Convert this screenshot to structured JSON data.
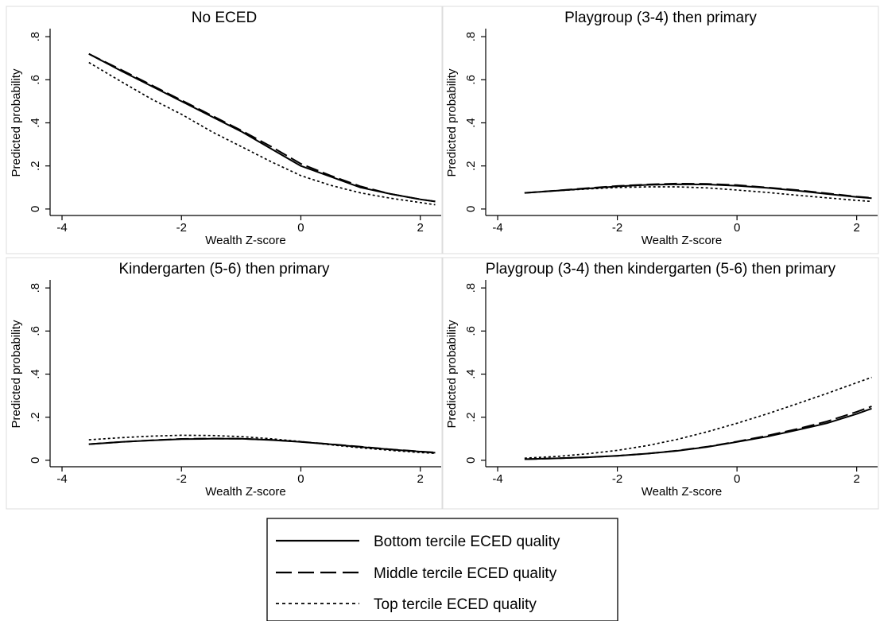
{
  "chart_data": {
    "type": "line",
    "xlabel": "Wealth Z-score",
    "ylabel": "Predicted probability",
    "xlim": [
      -4.2,
      2.35
    ],
    "ylim": [
      -0.03,
      0.83
    ],
    "xticks": [
      -4,
      -2,
      0,
      2
    ],
    "xtick_labels": [
      "-4",
      "-2",
      "0",
      "2"
    ],
    "yticks": [
      0,
      0.2,
      0.4,
      0.6,
      0.8
    ],
    "ytick_labels": [
      "0",
      ".2",
      ".4",
      ".6",
      ".8"
    ],
    "grid": false,
    "legend": {
      "placement": "bottom-center",
      "entries": [
        {
          "label": "Bottom tercile ECED quality",
          "style": "solid"
        },
        {
          "label": "Middle tercile ECED quality",
          "style": "long-dash"
        },
        {
          "label": "Top tercile ECED quality",
          "style": "dotted"
        }
      ]
    },
    "panels": [
      {
        "title": "No ECED",
        "x": [
          -3.55,
          -3,
          -2.5,
          -2,
          -1.5,
          -1,
          -0.5,
          0,
          0.5,
          1,
          1.5,
          2,
          2.25
        ],
        "series": [
          {
            "name": "Bottom tercile ECED quality",
            "style": "solid",
            "values": [
              0.72,
              0.64,
              0.57,
              0.5,
              0.43,
              0.36,
              0.28,
              0.2,
              0.15,
              0.1,
              0.07,
              0.045,
              0.035
            ]
          },
          {
            "name": "Middle tercile ECED quality",
            "style": "long-dash",
            "values": [
              0.72,
              0.645,
              0.575,
              0.505,
              0.435,
              0.365,
              0.29,
              0.21,
              0.155,
              0.105,
              0.07,
              0.045,
              0.035
            ]
          },
          {
            "name": "Top tercile ECED quality",
            "style": "dotted",
            "values": [
              0.68,
              0.59,
              0.51,
              0.44,
              0.36,
              0.29,
              0.22,
              0.155,
              0.11,
              0.075,
              0.05,
              0.03,
              0.02
            ]
          }
        ]
      },
      {
        "title": "Playgroup (3-4) then primary",
        "x": [
          -3.55,
          -3,
          -2.5,
          -2,
          -1.5,
          -1,
          -0.5,
          0,
          0.5,
          1,
          1.5,
          2,
          2.25
        ],
        "series": [
          {
            "name": "Bottom tercile ECED quality",
            "style": "solid",
            "values": [
              0.075,
              0.085,
              0.095,
              0.105,
              0.112,
              0.115,
              0.114,
              0.108,
              0.098,
              0.085,
              0.07,
              0.056,
              0.05
            ]
          },
          {
            "name": "Middle tercile ECED quality",
            "style": "long-dash",
            "values": [
              0.075,
              0.086,
              0.097,
              0.107,
              0.114,
              0.118,
              0.117,
              0.111,
              0.1,
              0.088,
              0.073,
              0.058,
              0.052
            ]
          },
          {
            "name": "Top tercile ECED quality",
            "style": "dotted",
            "values": [
              0.075,
              0.085,
              0.093,
              0.1,
              0.103,
              0.103,
              0.098,
              0.088,
              0.077,
              0.064,
              0.052,
              0.04,
              0.035
            ]
          }
        ]
      },
      {
        "title": "Kindergarten (5-6) then primary",
        "x": [
          -3.55,
          -3,
          -2.5,
          -2,
          -1.5,
          -1,
          -0.5,
          0,
          0.5,
          1,
          1.5,
          2,
          2.25
        ],
        "series": [
          {
            "name": "Bottom tercile ECED quality",
            "style": "solid",
            "values": [
              0.075,
              0.085,
              0.092,
              0.098,
              0.1,
              0.1,
              0.094,
              0.085,
              0.074,
              0.062,
              0.05,
              0.04,
              0.035
            ]
          },
          {
            "name": "Middle tercile ECED quality",
            "style": "long-dash",
            "values": [
              0.075,
              0.085,
              0.093,
              0.099,
              0.101,
              0.1,
              0.095,
              0.086,
              0.075,
              0.063,
              0.051,
              0.041,
              0.036
            ]
          },
          {
            "name": "Top tercile ECED quality",
            "style": "dotted",
            "values": [
              0.095,
              0.105,
              0.112,
              0.116,
              0.115,
              0.11,
              0.1,
              0.087,
              0.072,
              0.058,
              0.046,
              0.036,
              0.032
            ]
          }
        ]
      },
      {
        "title": "Playgroup (3-4) then kindergarten (5-6) then primary",
        "x": [
          -3.55,
          -3,
          -2.5,
          -2,
          -1.5,
          -1,
          -0.5,
          0,
          0.5,
          1,
          1.5,
          2,
          2.25
        ],
        "series": [
          {
            "name": "Bottom tercile ECED quality",
            "style": "solid",
            "values": [
              0.005,
              0.009,
              0.014,
              0.021,
              0.031,
              0.044,
              0.062,
              0.085,
              0.11,
              0.14,
              0.172,
              0.215,
              0.24
            ]
          },
          {
            "name": "Middle tercile ECED quality",
            "style": "long-dash",
            "values": [
              0.005,
              0.009,
              0.014,
              0.021,
              0.031,
              0.045,
              0.063,
              0.087,
              0.114,
              0.145,
              0.18,
              0.225,
              0.25
            ]
          },
          {
            "name": "Top tercile ECED quality",
            "style": "dotted",
            "values": [
              0.01,
              0.018,
              0.03,
              0.046,
              0.068,
              0.097,
              0.132,
              0.172,
              0.215,
              0.262,
              0.31,
              0.36,
              0.385
            ]
          }
        ]
      }
    ]
  }
}
